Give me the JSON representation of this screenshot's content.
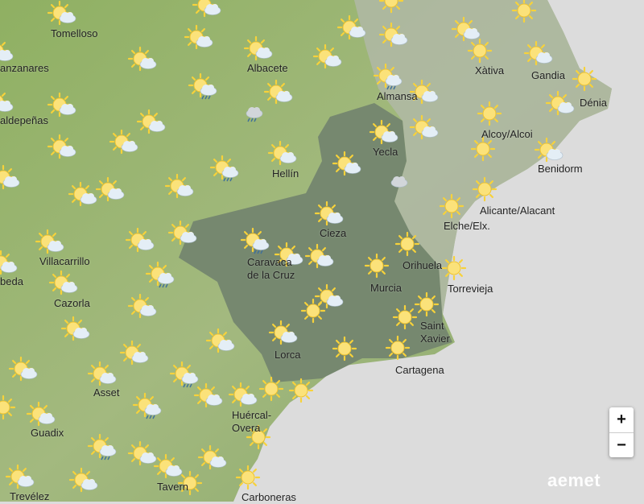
{
  "colors": {
    "sea": "#dcdcdc",
    "land": "#9fb77a",
    "murcia_region": "#76886f",
    "valencia_region": "#b0b8a6",
    "sun": "#f7d23a",
    "cloud": "#e4eef6"
  },
  "places": [
    "Tomelloso",
    "anzanares",
    "Albacete",
    "Almansa",
    "Xàtiva",
    "Gandia",
    "Dénia",
    "aldepeñas",
    "Alcoy/Alcoi",
    "Yecla",
    "Benidorm",
    "Hellín",
    "Alicante/Alacant",
    "Elche/Elx.",
    "Cieza",
    "Villacarrillo",
    "Caravaca\nde la Cruz",
    "Orihuela",
    "beda",
    "Torrevieja",
    "Murcia",
    "Cazorla",
    "Saint\nXavier",
    "Lorca",
    "Cartagena",
    "Asset",
    "Huércal-\nOvera",
    "Guadix",
    "Tavern",
    "Trevélez",
    "Carboneras"
  ],
  "icons": [
    "sun-cloud",
    "sun-cloud",
    "sun",
    "sun",
    "sun-cloud",
    "sun-cloud",
    "sun-cloud",
    "sun-cloud",
    "sun-cloud",
    "sun-cloud",
    "sun-cloud",
    "sun-cloud",
    "sun",
    "sun-cloud",
    "sun",
    "sun-cloud",
    "sun-cloud",
    "sun-cloud-rain",
    "cloud-rain",
    "sun-cloud",
    "sun-cloud-rain",
    "sun-cloud",
    "sun",
    "sun-cloud",
    "sun-cloud",
    "sun-cloud",
    "sun-cloud",
    "sun-cloud",
    "sun-cloud",
    "sun",
    "sun-cloud",
    "sun-cloud",
    "sun-cloud-rain",
    "sun-cloud",
    "sun-cloud",
    "cloud",
    "sun-cloud",
    "sun-cloud",
    "sun-cloud",
    "sun",
    "sun",
    "sun-cloud",
    "sun-cloud",
    "sun-cloud",
    "sun-cloud",
    "sun-cloud-rain",
    "sun-cloud",
    "sun-cloud",
    "sun",
    "sun",
    "sun",
    "sun-cloud",
    "sun-cloud-rain",
    "sun-cloud",
    "sun-cloud",
    "sun",
    "sun",
    "sun",
    "sun-cloud",
    "sun-cloud",
    "sun-cloud",
    "sun-cloud",
    "sun",
    "sun",
    "sun-cloud",
    "sun-cloud",
    "sun-cloud",
    "sun-cloud-rain",
    "sun",
    "sun",
    "sun-cloud",
    "sun-cloud",
    "sun-cloud-rain",
    "sun-cloud",
    "sun",
    "sun",
    "sun-cloud-rain",
    "sun-cloud",
    "sun-cloud",
    "sun-cloud",
    "sun-cloud",
    "sun-cloud",
    "sun",
    "sun"
  ],
  "controls": {
    "zoom_in": "+",
    "zoom_out": "−"
  },
  "logo": "aemet"
}
